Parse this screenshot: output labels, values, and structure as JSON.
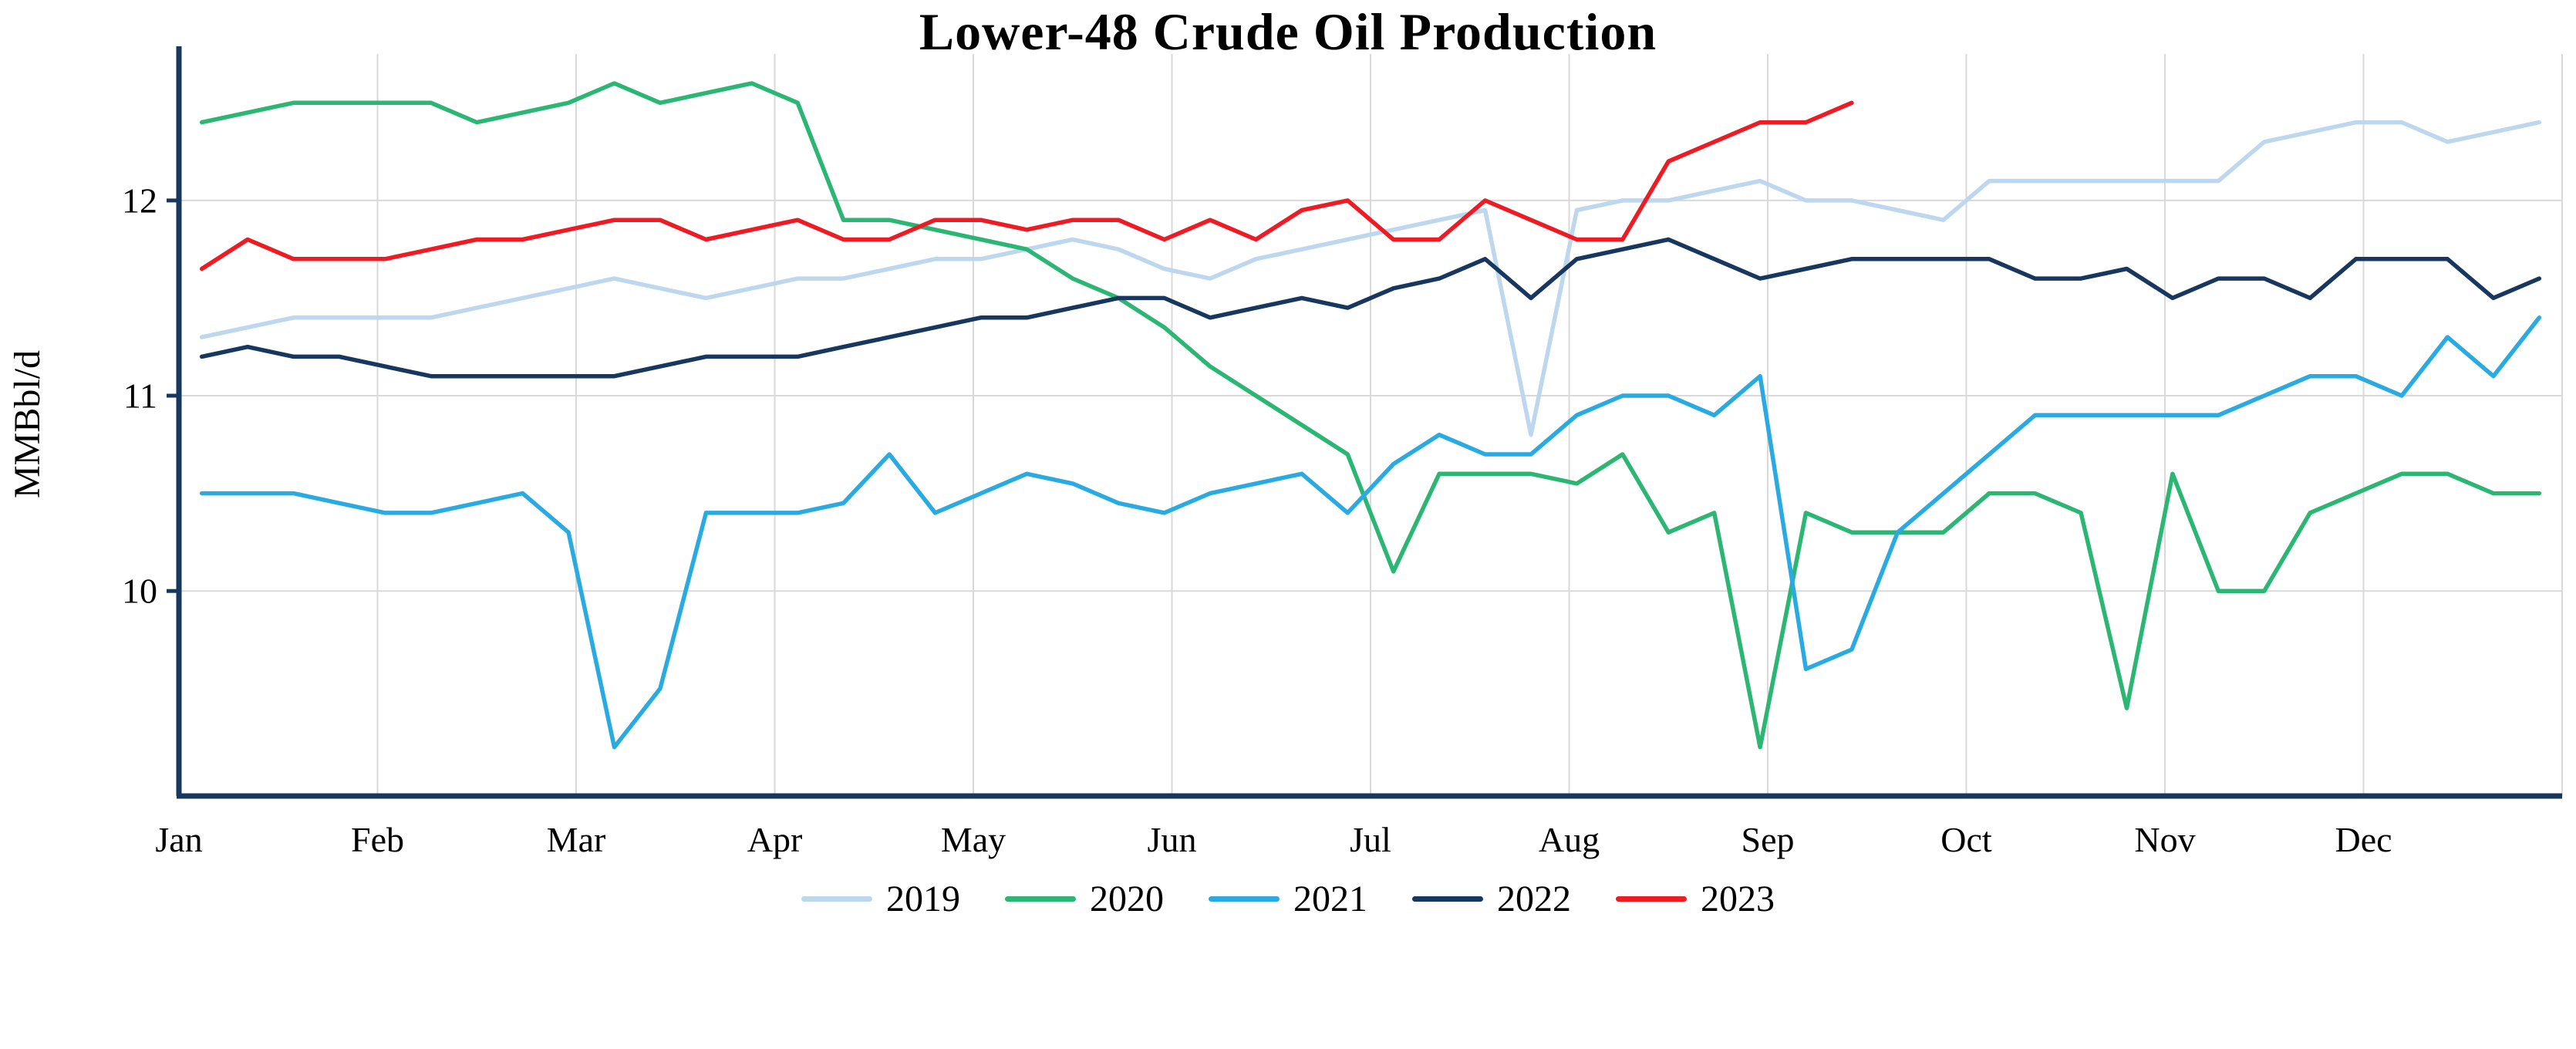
{
  "chart_data": {
    "type": "line",
    "title": "Lower-48 Crude Oil Production",
    "ylabel": "MMBbl/d",
    "x_unit": "week-of-year",
    "months": [
      "Jan",
      "Feb",
      "Mar",
      "Apr",
      "May",
      "Jun",
      "Jul",
      "Aug",
      "Sep",
      "Oct",
      "Nov",
      "Dec"
    ],
    "yticks": [
      10,
      11,
      12
    ],
    "ylim": [
      8.95,
      12.75
    ],
    "weeks_per_year": 52,
    "grid": true,
    "legend_position": "bottom",
    "axis_color": "#17375e",
    "grid_color": "#d9d9d9",
    "series": [
      {
        "name": "2019",
        "color": "#bdd7ee",
        "values": [
          11.3,
          11.35,
          11.4,
          11.4,
          11.4,
          11.4,
          11.45,
          11.5,
          11.55,
          11.6,
          11.55,
          11.5,
          11.55,
          11.6,
          11.6,
          11.65,
          11.7,
          11.7,
          11.75,
          11.8,
          11.75,
          11.65,
          11.6,
          11.7,
          11.75,
          11.8,
          11.85,
          11.9,
          11.95,
          10.8,
          11.95,
          12.0,
          12.0,
          12.05,
          12.1,
          12.0,
          12.0,
          11.95,
          11.9,
          12.1,
          12.1,
          12.1,
          12.1,
          12.1,
          12.1,
          12.3,
          12.35,
          12.4,
          12.4,
          12.3,
          12.35,
          12.4
        ]
      },
      {
        "name": "2020",
        "color": "#2bb673",
        "values": [
          12.4,
          12.45,
          12.5,
          12.5,
          12.5,
          12.5,
          12.4,
          12.45,
          12.5,
          12.6,
          12.5,
          12.55,
          12.6,
          12.5,
          11.9,
          11.9,
          11.85,
          11.8,
          11.75,
          11.6,
          11.5,
          11.35,
          11.15,
          11.0,
          10.85,
          10.7,
          10.1,
          10.6,
          10.6,
          10.6,
          10.55,
          10.7,
          10.3,
          10.4,
          9.2,
          10.4,
          10.3,
          10.3,
          10.3,
          10.5,
          10.5,
          10.4,
          9.4,
          10.6,
          10.0,
          10.0,
          10.4,
          10.5,
          10.6,
          10.6,
          10.5,
          10.5
        ]
      },
      {
        "name": "2021",
        "color": "#29abe2",
        "values": [
          10.5,
          10.5,
          10.5,
          10.45,
          10.4,
          10.4,
          10.45,
          10.5,
          10.3,
          9.2,
          9.5,
          10.4,
          10.4,
          10.4,
          10.45,
          10.7,
          10.4,
          10.5,
          10.6,
          10.55,
          10.45,
          10.4,
          10.5,
          10.55,
          10.6,
          10.4,
          10.65,
          10.8,
          10.7,
          10.7,
          10.9,
          11.0,
          11.0,
          10.9,
          11.1,
          9.6,
          9.7,
          10.3,
          10.5,
          10.7,
          10.9,
          10.9,
          10.9,
          10.9,
          10.9,
          11.0,
          11.1,
          11.1,
          11.0,
          11.3,
          11.1,
          11.4
        ]
      },
      {
        "name": "2022",
        "color": "#17375e",
        "values": [
          11.2,
          11.25,
          11.2,
          11.2,
          11.15,
          11.1,
          11.1,
          11.1,
          11.1,
          11.1,
          11.15,
          11.2,
          11.2,
          11.2,
          11.25,
          11.3,
          11.35,
          11.4,
          11.4,
          11.45,
          11.5,
          11.5,
          11.4,
          11.45,
          11.5,
          11.45,
          11.55,
          11.6,
          11.7,
          11.5,
          11.7,
          11.75,
          11.8,
          11.7,
          11.6,
          11.65,
          11.7,
          11.7,
          11.7,
          11.7,
          11.6,
          11.6,
          11.65,
          11.5,
          11.6,
          11.6,
          11.5,
          11.7,
          11.7,
          11.7,
          11.5,
          11.6
        ]
      },
      {
        "name": "2023",
        "color": "#ed1c24",
        "values": [
          11.65,
          11.8,
          11.7,
          11.7,
          11.7,
          11.75,
          11.8,
          11.8,
          11.85,
          11.9,
          11.9,
          11.8,
          11.85,
          11.9,
          11.8,
          11.8,
          11.9,
          11.9,
          11.85,
          11.9,
          11.9,
          11.8,
          11.9,
          11.8,
          11.95,
          12.0,
          11.8,
          11.8,
          12.0,
          11.9,
          11.8,
          11.8,
          12.2,
          12.3,
          12.4,
          12.4,
          12.5
        ]
      }
    ]
  }
}
